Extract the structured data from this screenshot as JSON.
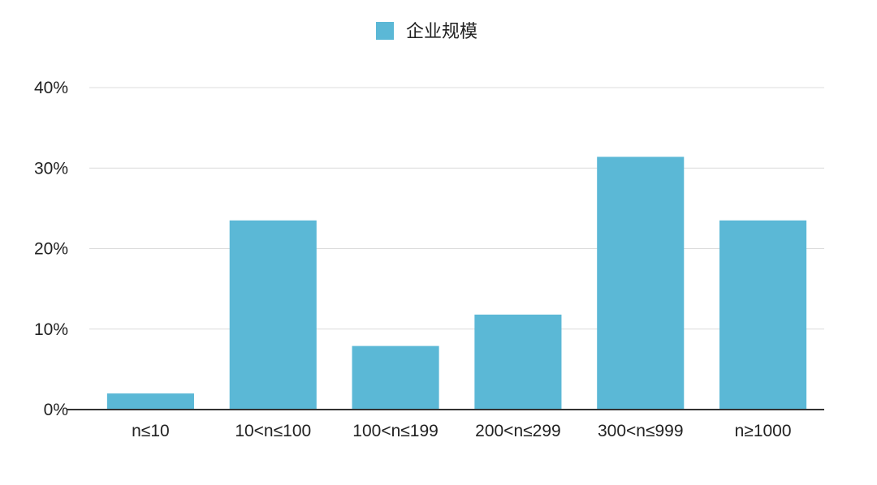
{
  "chart_data": {
    "type": "bar",
    "categories": [
      "n≤10",
      "10<n≤100",
      "100<n≤199",
      "200<n≤299",
      "300<n≤999",
      "n≥1000"
    ],
    "series": [
      {
        "name": "企业规模",
        "color": "#5bb8d6",
        "values": [
          2.0,
          23.5,
          7.9,
          11.8,
          31.4,
          23.5
        ]
      }
    ],
    "ylim": [
      0,
      40
    ],
    "yticks": [
      0,
      10,
      20,
      30,
      40
    ],
    "ytick_labels": [
      "0%",
      "10%",
      "20%",
      "30%",
      "40%"
    ],
    "grid": true,
    "legend_position": "top-center"
  }
}
